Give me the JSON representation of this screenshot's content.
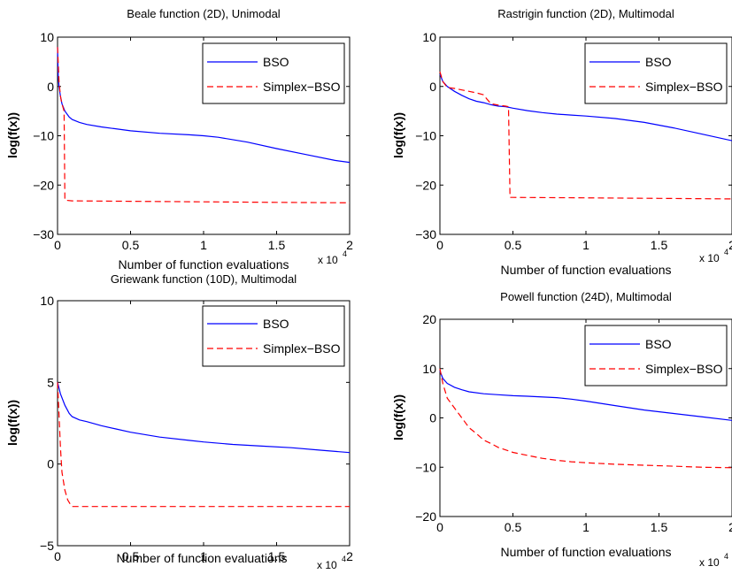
{
  "chart_data": [
    {
      "type": "line",
      "title": "Beale function (2D), Unimodal",
      "xlabel": "Number of function evaluations",
      "ylabel": "log(f(x))",
      "x_multiplier": {
        "base": "x 10",
        "exp": "4"
      },
      "xlim": [
        0,
        2
      ],
      "ylim": [
        -30,
        10
      ],
      "xticks": [
        0,
        0.5,
        1,
        1.5,
        2
      ],
      "yticks": [
        -30,
        -20,
        -10,
        0,
        10
      ],
      "xtick_labels": [
        "0",
        "0.5",
        "1",
        "1.5",
        "2"
      ],
      "ytick_labels": [
        "−30",
        "−20",
        "−10",
        "0",
        "10"
      ],
      "legend_position": "top-right",
      "series": [
        {
          "name": "BSO",
          "color": "#0000ff",
          "style": "solid",
          "x": [
            0,
            0.005,
            0.01,
            0.02,
            0.03,
            0.05,
            0.08,
            0.1,
            0.15,
            0.2,
            0.3,
            0.5,
            0.7,
            0.9,
            1.0,
            1.1,
            1.3,
            1.5,
            1.7,
            1.9,
            2.0
          ],
          "y": [
            8,
            2,
            0,
            -2,
            -3.5,
            -5,
            -6.2,
            -6.7,
            -7.3,
            -7.7,
            -8.2,
            -9,
            -9.5,
            -9.8,
            -10,
            -10.3,
            -11.3,
            -12.6,
            -13.8,
            -15,
            -15.4
          ]
        },
        {
          "name": "Simplex−BSO",
          "color": "#ff0000",
          "style": "dashed",
          "x": [
            0,
            0.01,
            0.02,
            0.03,
            0.04,
            0.045,
            0.05,
            0.06,
            0.1,
            0.5,
            1.0,
            1.5,
            2.0
          ],
          "y": [
            8,
            1,
            -2,
            -3.5,
            -4.5,
            -5,
            -23,
            -23.1,
            -23.2,
            -23.3,
            -23.4,
            -23.5,
            -23.6
          ]
        }
      ]
    },
    {
      "type": "line",
      "title": "Rastrigin function (2D), Multimodal",
      "xlabel": "Number of function evaluations",
      "ylabel": "log(f(x))",
      "x_multiplier": {
        "base": "x 10",
        "exp": "4"
      },
      "xlim": [
        0,
        2
      ],
      "ylim": [
        -30,
        10
      ],
      "xticks": [
        0,
        0.5,
        1,
        1.5,
        2
      ],
      "yticks": [
        -30,
        -20,
        -10,
        0,
        10
      ],
      "xtick_labels": [
        "0",
        "0.5",
        "1",
        "1.5",
        "2"
      ],
      "ytick_labels": [
        "−30",
        "−20",
        "−10",
        "0",
        "10"
      ],
      "legend_position": "top-right",
      "series": [
        {
          "name": "BSO",
          "color": "#0000ff",
          "style": "solid",
          "x": [
            0,
            0.02,
            0.05,
            0.1,
            0.15,
            0.2,
            0.25,
            0.3,
            0.35,
            0.4,
            0.45,
            0.5,
            0.6,
            0.7,
            0.8,
            0.9,
            1.0,
            1.2,
            1.4,
            1.6,
            1.8,
            2.0
          ],
          "y": [
            2.5,
            1,
            0,
            -1,
            -1.8,
            -2.5,
            -3,
            -3.3,
            -3.7,
            -4,
            -4.1,
            -4.4,
            -4.9,
            -5.3,
            -5.6,
            -5.8,
            -6,
            -6.5,
            -7.3,
            -8.4,
            -9.7,
            -11
          ]
        },
        {
          "name": "Simplex−BSO",
          "color": "#ff0000",
          "style": "dashed",
          "x": [
            0,
            0.02,
            0.05,
            0.1,
            0.15,
            0.2,
            0.25,
            0.3,
            0.32,
            0.35,
            0.4,
            0.45,
            0.47,
            0.48,
            0.5,
            1.0,
            1.5,
            2.0
          ],
          "y": [
            3,
            1,
            -0.2,
            -0.4,
            -0.7,
            -1,
            -1.3,
            -1.7,
            -2.5,
            -3.5,
            -3.8,
            -4.0,
            -4.1,
            -22.5,
            -22.5,
            -22.6,
            -22.7,
            -22.8
          ]
        }
      ]
    },
    {
      "type": "line",
      "title": "Griewank function (10D), Multimodal",
      "xlabel": "Number of function evaluations",
      "ylabel": "log(f(x))",
      "x_multiplier": {
        "base": "x 10",
        "exp": "4"
      },
      "xlim": [
        0,
        2
      ],
      "ylim": [
        -5,
        10
      ],
      "xticks": [
        0,
        0.5,
        1,
        1.5,
        2
      ],
      "yticks": [
        -5,
        0,
        5,
        10
      ],
      "xtick_labels": [
        "0",
        "0.5",
        "1",
        "1.5",
        "2"
      ],
      "ytick_labels": [
        "−5",
        "0",
        "5",
        "10"
      ],
      "legend_position": "top-right",
      "series": [
        {
          "name": "BSO",
          "color": "#0000ff",
          "style": "solid",
          "x": [
            0,
            0.02,
            0.05,
            0.08,
            0.1,
            0.15,
            0.2,
            0.3,
            0.4,
            0.5,
            0.7,
            0.9,
            1.0,
            1.2,
            1.4,
            1.6,
            1.8,
            2.0
          ],
          "y": [
            5,
            4.3,
            3.6,
            3.1,
            2.9,
            2.7,
            2.6,
            2.35,
            2.15,
            1.95,
            1.65,
            1.45,
            1.35,
            1.2,
            1.1,
            1.0,
            0.85,
            0.7
          ]
        },
        {
          "name": "Simplex−BSO",
          "color": "#ff0000",
          "style": "dashed",
          "x": [
            0,
            0.01,
            0.02,
            0.03,
            0.05,
            0.07,
            0.09,
            0.1,
            0.5,
            1.0,
            1.5,
            2.0
          ],
          "y": [
            5,
            3,
            1,
            -0.5,
            -1.6,
            -2.2,
            -2.5,
            -2.6,
            -2.6,
            -2.6,
            -2.6,
            -2.6
          ]
        }
      ]
    },
    {
      "type": "line",
      "title": "Powell function (24D), Multimodal",
      "xlabel": "Number of function evaluations",
      "ylabel": "log(f(x))",
      "x_multiplier": {
        "base": "x 10",
        "exp": "4"
      },
      "xlim": [
        0,
        2
      ],
      "ylim": [
        -20,
        20
      ],
      "xticks": [
        0,
        0.5,
        1,
        1.5,
        2
      ],
      "yticks": [
        -20,
        -10,
        0,
        10,
        20
      ],
      "xtick_labels": [
        "0",
        "0.5",
        "1",
        "1.5",
        "2"
      ],
      "ytick_labels": [
        "−20",
        "−10",
        "0",
        "10",
        "20"
      ],
      "legend_position": "top-right",
      "series": [
        {
          "name": "BSO",
          "color": "#0000ff",
          "style": "solid",
          "x": [
            0,
            0.02,
            0.05,
            0.1,
            0.15,
            0.2,
            0.3,
            0.4,
            0.5,
            0.6,
            0.8,
            0.9,
            1.0,
            1.2,
            1.4,
            1.6,
            1.8,
            2.0
          ],
          "y": [
            9.5,
            8,
            7,
            6.2,
            5.7,
            5.3,
            4.9,
            4.7,
            4.5,
            4.4,
            4.1,
            3.8,
            3.4,
            2.5,
            1.6,
            0.9,
            0.2,
            -0.5
          ]
        },
        {
          "name": "Simplex−BSO",
          "color": "#ff0000",
          "style": "dashed",
          "x": [
            0,
            0.02,
            0.05,
            0.1,
            0.15,
            0.2,
            0.25,
            0.3,
            0.35,
            0.4,
            0.5,
            0.6,
            0.7,
            0.8,
            0.9,
            1.0,
            1.2,
            1.4,
            1.6,
            1.8,
            2.0
          ],
          "y": [
            10,
            7,
            4,
            2,
            0,
            -2,
            -3.2,
            -4.5,
            -5.2,
            -6,
            -7,
            -7.6,
            -8.2,
            -8.6,
            -8.9,
            -9.1,
            -9.4,
            -9.6,
            -9.8,
            -10,
            -10.1
          ]
        }
      ]
    }
  ]
}
